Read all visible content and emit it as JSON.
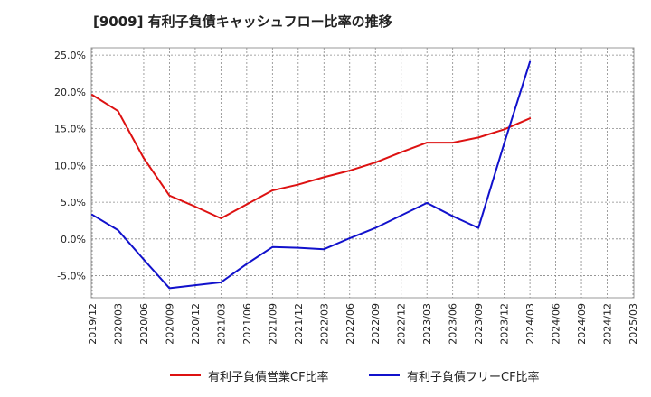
{
  "title": "[9009]  有利子負債キャッシュフロー比率の推移",
  "chart_data": {
    "type": "line",
    "title": "[9009]  有利子負債キャッシュフロー比率の推移",
    "xlabel": "",
    "ylabel": "",
    "ylim": [
      -8.0,
      26.0
    ],
    "yticks": [
      25.0,
      20.0,
      15.0,
      10.0,
      5.0,
      0.0,
      -5.0
    ],
    "ytick_labels": [
      "25.0%",
      "20.0%",
      "15.0%",
      "10.0%",
      "5.0%",
      "0.0%",
      "-5.0%"
    ],
    "categories": [
      "2019/12",
      "2020/03",
      "2020/06",
      "2020/09",
      "2020/12",
      "2021/03",
      "2021/06",
      "2021/09",
      "2021/12",
      "2022/03",
      "2022/06",
      "2022/09",
      "2022/12",
      "2023/03",
      "2023/06",
      "2023/09",
      "2023/12",
      "2024/03",
      "2024/06",
      "2024/09",
      "2024/12",
      "2025/03"
    ],
    "grid": true,
    "legend_position": "bottom",
    "series": [
      {
        "name": "有利子負債営業CF比率",
        "color": "#dd1111",
        "values": [
          19.6,
          17.4,
          11.0,
          5.9,
          4.4,
          2.8,
          4.7,
          6.6,
          7.4,
          8.4,
          9.3,
          10.4,
          11.8,
          13.1,
          13.1,
          13.8,
          14.9,
          16.4,
          null,
          null,
          null,
          null
        ]
      },
      {
        "name": "有利子負債フリーCF比率",
        "color": "#1111cc",
        "values": [
          3.3,
          1.2,
          -2.8,
          -6.7,
          -6.3,
          -5.9,
          -3.4,
          -1.1,
          -1.2,
          -1.4,
          0.1,
          1.5,
          3.2,
          4.9,
          3.1,
          1.5,
          13.0,
          24.1,
          null,
          null,
          null,
          null
        ]
      }
    ]
  }
}
